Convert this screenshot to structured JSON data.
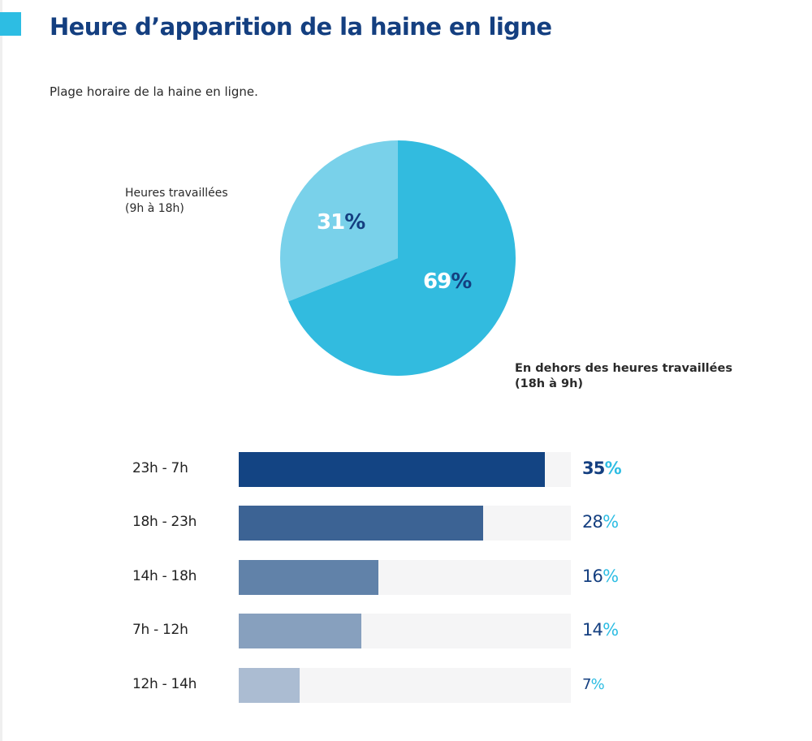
{
  "header": {
    "title": "Heure d’apparition de la haine en ligne",
    "subtitle": "Plage horaire de la haine en ligne."
  },
  "colors": {
    "accent": "#2dbde3",
    "title": "#143f80",
    "pie_main": "#32bbdf",
    "pie_light": "#79d1ea",
    "track": "#f5f5f6",
    "bars": [
      "#134483",
      "#3c6394",
      "#6182a9",
      "#87a0be",
      "#abbcd2"
    ]
  },
  "chart_data": [
    {
      "type": "pie",
      "title": "Plage horaire de la haine en ligne.",
      "slices": [
        {
          "label": "Heures travaillées (9h à 18h)",
          "label_line1": "Heures travaillées",
          "label_line2": "(9h à 18h)",
          "value": 31,
          "value_number": "31",
          "value_suffix": "%"
        },
        {
          "label": "En dehors des heures travaillées (18h à 9h)",
          "label_line1": "En dehors des heures travaillées",
          "label_line2": "(18h à 9h)",
          "value": 69,
          "value_number": "69",
          "value_suffix": "%"
        }
      ]
    },
    {
      "type": "bar",
      "orientation": "horizontal",
      "categories": [
        "23h - 7h",
        "18h - 23h",
        "14h - 18h",
        "7h - 12h",
        "12h - 14h"
      ],
      "values": [
        35,
        28,
        16,
        14,
        7
      ],
      "value_numbers": [
        "35",
        "28",
        "16",
        "14",
        "7"
      ],
      "value_suffix": "%",
      "xlim": [
        0,
        38
      ],
      "xlabel": "",
      "ylabel": "",
      "grid": false
    }
  ]
}
